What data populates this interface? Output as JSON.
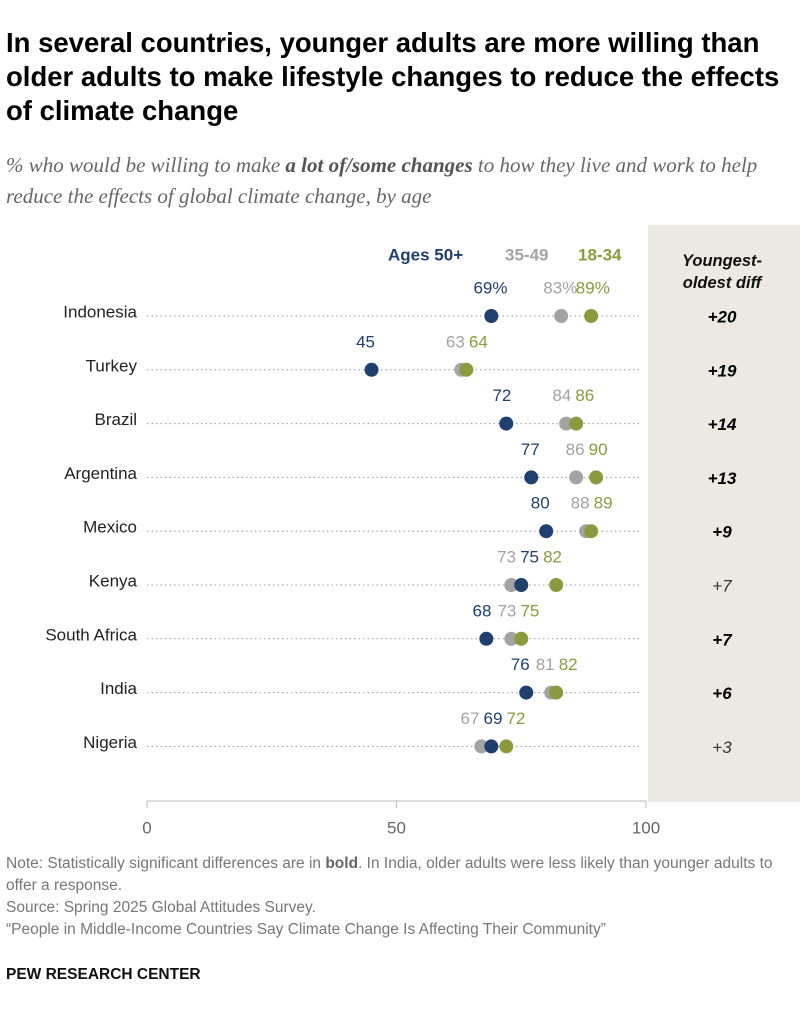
{
  "chart_data": {
    "type": "dot",
    "title": "In several countries, younger adults are more willing than older adults to make lifestyle changes to reduce the effects of climate change",
    "subtitle_parts": [
      "% who would be willing to make ",
      "a lot of/some changes",
      " to how they live and work to help reduce the effects of global climate change, by age"
    ],
    "categories": [
      "Indonesia",
      "Turkey",
      "Brazil",
      "Argentina",
      "Mexico",
      "Kenya",
      "South Africa",
      "India",
      "Nigeria"
    ],
    "series": [
      {
        "name": "Ages 50+",
        "color": "#1f3f6e",
        "values": [
          69,
          45,
          72,
          77,
          80,
          75,
          68,
          76,
          69
        ],
        "value_labels": [
          "69%",
          "45",
          "72",
          "77",
          "80",
          "75",
          "68",
          "76",
          "69"
        ]
      },
      {
        "name": "35-49",
        "color": "#a3a3a3",
        "values": [
          83,
          63,
          84,
          86,
          88,
          73,
          73,
          81,
          67
        ],
        "value_labels": [
          "83%",
          "63",
          "84",
          "86",
          "88",
          "73",
          "73",
          "81",
          "67"
        ]
      },
      {
        "name": "18-34",
        "color": "#8b9a3c",
        "values": [
          89,
          64,
          86,
          90,
          89,
          82,
          75,
          82,
          72
        ],
        "value_labels": [
          "89%",
          "64",
          "86",
          "90",
          "89",
          "82",
          "75",
          "82",
          "72"
        ]
      }
    ],
    "diff_header": "Youngest-oldest diff",
    "diffs": [
      "+20",
      "+19",
      "+14",
      "+13",
      "+9",
      "+7",
      "+7",
      "+6",
      "+3"
    ],
    "diff_bold": [
      true,
      true,
      true,
      true,
      true,
      false,
      true,
      true,
      false
    ],
    "xlim": [
      0,
      100
    ],
    "xticks": [
      0,
      50,
      100
    ],
    "note_parts": [
      "Note: Statistically significant differences are in ",
      "bold",
      ". In India, older adults were less likely than younger adults to offer a response."
    ],
    "source": "Source: Spring 2025 Global Attitudes Survey.",
    "report": "“People in Middle-Income Countries Say Climate Change Is Affecting Their Community”",
    "footer": "PEW RESEARCH CENTER"
  }
}
